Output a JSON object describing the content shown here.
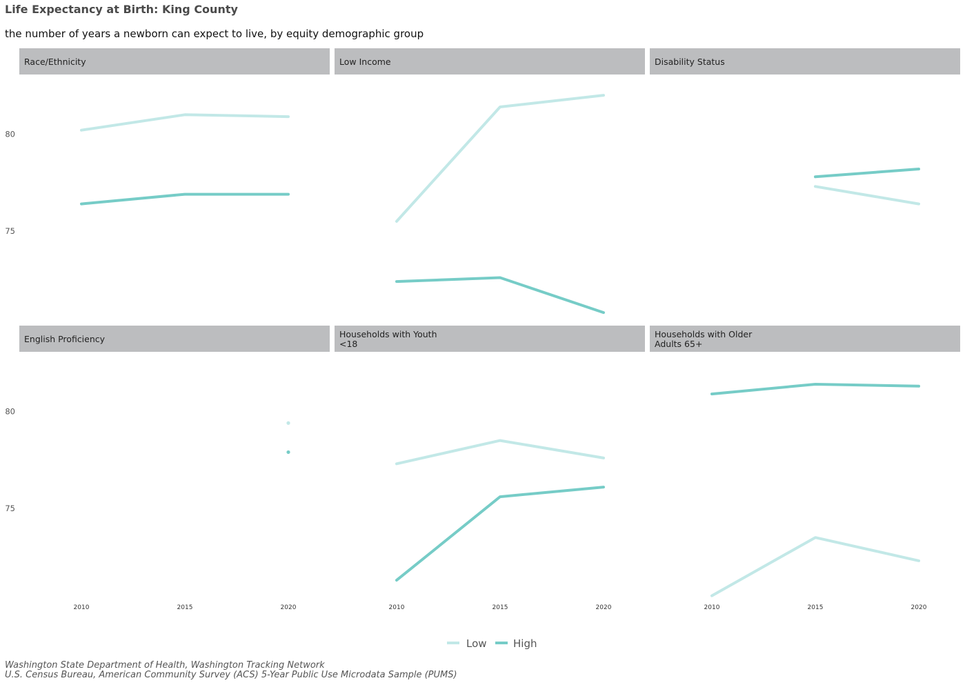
{
  "chart": {
    "title": "Life Expectancy at Birth: King County",
    "subtitle": "the number of years a newborn can expect to live, by equity demographic group",
    "caption_lines": [
      "Washington State Department of Health, Washington Tracking Network",
      "U.S. Census Bureau, American Community Survey (ACS) 5-Year Public Use Microdata Sample (PUMS)"
    ]
  },
  "chart_data": {
    "type": "line",
    "x_ticks": [
      2010,
      2015,
      2020
    ],
    "xlim": [
      2007,
      2022
    ],
    "y_ticks": [
      75,
      80
    ],
    "ylim": [
      70.2,
      83.0
    ],
    "grid": false,
    "legend_position": "bottom",
    "series_styles": [
      {
        "name": "Low",
        "color": "#c2e8e7"
      },
      {
        "name": "High",
        "color": "#76ccc7"
      }
    ],
    "facets": [
      {
        "label_lines": [
          "Race/Ethnicity"
        ],
        "series": [
          {
            "name": "Low",
            "x": [
              2010,
              2015,
              2020
            ],
            "values": [
              80.2,
              81.0,
              80.9
            ]
          },
          {
            "name": "High",
            "x": [
              2010,
              2015,
              2020
            ],
            "values": [
              76.4,
              76.9,
              76.9
            ]
          }
        ]
      },
      {
        "label_lines": [
          "Low Income"
        ],
        "series": [
          {
            "name": "Low",
            "x": [
              2010,
              2015,
              2020
            ],
            "values": [
              75.5,
              81.4,
              82.0
            ]
          },
          {
            "name": "High",
            "x": [
              2010,
              2015,
              2020
            ],
            "values": [
              72.4,
              72.6,
              70.8
            ]
          }
        ]
      },
      {
        "label_lines": [
          "Disability Status"
        ],
        "series": [
          {
            "name": "Low",
            "x": [
              2015,
              2020
            ],
            "values": [
              77.3,
              76.4
            ]
          },
          {
            "name": "High",
            "x": [
              2015,
              2020
            ],
            "values": [
              77.8,
              78.2
            ]
          }
        ]
      },
      {
        "label_lines": [
          "English Proficiency"
        ],
        "series": [
          {
            "name": "Low",
            "x": [
              2020
            ],
            "values": [
              79.4
            ]
          },
          {
            "name": "High",
            "x": [
              2020
            ],
            "values": [
              77.9
            ]
          }
        ]
      },
      {
        "label_lines": [
          "Households with Youth",
          "<18"
        ],
        "series": [
          {
            "name": "Low",
            "x": [
              2010,
              2015,
              2020
            ],
            "values": [
              77.3,
              78.5,
              77.6
            ]
          },
          {
            "name": "High",
            "x": [
              2010,
              2015,
              2020
            ],
            "values": [
              71.3,
              75.6,
              76.1
            ]
          }
        ]
      },
      {
        "label_lines": [
          "Households with Older",
          "Adults 65+"
        ],
        "series": [
          {
            "name": "Low",
            "x": [
              2010,
              2015,
              2020
            ],
            "values": [
              70.5,
              73.5,
              72.3
            ]
          },
          {
            "name": "High",
            "x": [
              2010,
              2015,
              2020
            ],
            "values": [
              80.9,
              81.4,
              81.3
            ]
          }
        ]
      }
    ]
  }
}
